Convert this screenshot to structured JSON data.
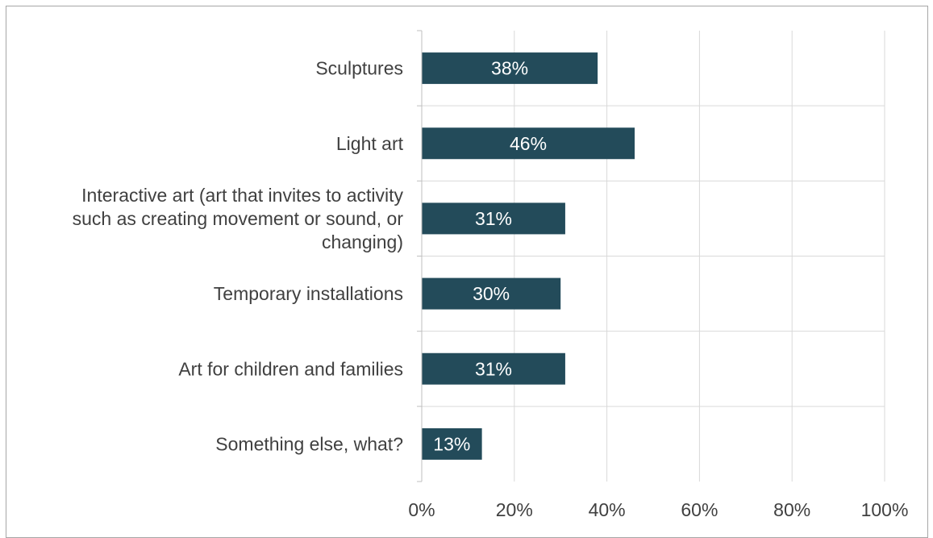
{
  "chart_data": {
    "type": "bar",
    "orientation": "horizontal",
    "title": "",
    "xlabel": "",
    "ylabel": "",
    "categories": [
      [
        "Sculptures"
      ],
      [
        "Light art"
      ],
      [
        "Interactive art (art that invites to activity",
        "such as creating movement or sound, or",
        "changing)"
      ],
      [
        "Temporary installations"
      ],
      [
        "Art for children and families"
      ],
      [
        "Something else, what?"
      ]
    ],
    "values": [
      38,
      46,
      31,
      30,
      31,
      13
    ],
    "data_labels": [
      "38%",
      "46%",
      "31%",
      "30%",
      "31%",
      "13%"
    ],
    "xlim": [
      0,
      100
    ],
    "x_ticks": [
      0,
      20,
      40,
      60,
      80,
      100
    ],
    "x_tick_labels": [
      "0%",
      "20%",
      "40%",
      "60%",
      "80%",
      "100%"
    ],
    "grid": true,
    "legend": "none",
    "colors": {
      "bar": "#234b5a",
      "grid": "#d9d9d9",
      "axis": "#bfbfbf",
      "text": "#404040",
      "data_label": "#ffffff"
    }
  }
}
